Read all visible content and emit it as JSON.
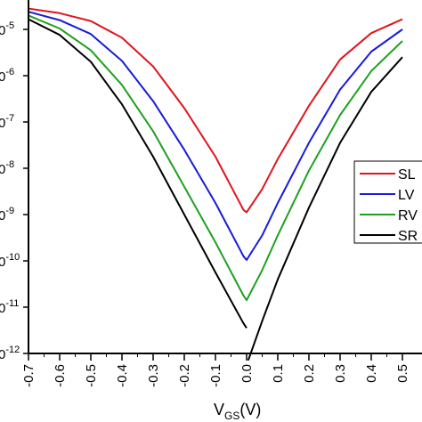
{
  "chart_data": {
    "type": "line",
    "xlabel": "V",
    "xlabel_subscript": "GS",
    "xlabel_unit": "(V)",
    "x_ticks": [
      "-0.7",
      "-0.6",
      "-0.5",
      "-0.4",
      "-0.3",
      "-0.2",
      "-0.1",
      "0.0",
      "0.1",
      "0.2",
      "0.3",
      "0.4",
      "0.5"
    ],
    "y_ticks": [
      {
        "exp": -5,
        "label": "-5"
      },
      {
        "exp": -6,
        "label": "-6"
      },
      {
        "exp": -7,
        "label": "-7"
      },
      {
        "exp": -8,
        "label": "-8"
      },
      {
        "exp": -9,
        "label": "-9"
      },
      {
        "exp": -10,
        "label": "-10"
      },
      {
        "exp": -11,
        "label": "-11"
      },
      {
        "exp": -12,
        "label": "-12"
      }
    ],
    "x_range": [
      -0.7,
      0.5
    ],
    "y_log_range": [
      -12.5,
      -4.5
    ],
    "y_scale": "log",
    "grid": false,
    "legend_position": "right",
    "series": [
      {
        "name": "SL",
        "color": "#e0151c",
        "points": [
          [
            -0.7,
            -4.55
          ],
          [
            -0.6,
            -4.65
          ],
          [
            -0.5,
            -4.82
          ],
          [
            -0.4,
            -5.18
          ],
          [
            -0.3,
            -5.8
          ],
          [
            -0.2,
            -6.7
          ],
          [
            -0.1,
            -7.75
          ],
          [
            -0.01,
            -8.9
          ],
          [
            0.0,
            -8.95
          ],
          [
            0.05,
            -8.45
          ],
          [
            0.1,
            -7.8
          ],
          [
            0.2,
            -6.65
          ],
          [
            0.3,
            -5.65
          ],
          [
            0.4,
            -5.08
          ],
          [
            0.5,
            -4.78
          ]
        ]
      },
      {
        "name": "LV",
        "color": "#1a1adb",
        "points": [
          [
            -0.7,
            -4.62
          ],
          [
            -0.6,
            -4.8
          ],
          [
            -0.5,
            -5.1
          ],
          [
            -0.4,
            -5.68
          ],
          [
            -0.3,
            -6.55
          ],
          [
            -0.2,
            -7.6
          ],
          [
            -0.1,
            -8.75
          ],
          [
            -0.01,
            -9.9
          ],
          [
            0.0,
            -9.98
          ],
          [
            0.05,
            -9.45
          ],
          [
            0.1,
            -8.75
          ],
          [
            0.2,
            -7.45
          ],
          [
            0.3,
            -6.3
          ],
          [
            0.4,
            -5.48
          ],
          [
            0.5,
            -5.0
          ]
        ]
      },
      {
        "name": "RV",
        "color": "#1ea01e",
        "points": [
          [
            -0.7,
            -4.7
          ],
          [
            -0.6,
            -4.98
          ],
          [
            -0.5,
            -5.45
          ],
          [
            -0.4,
            -6.2
          ],
          [
            -0.3,
            -7.2
          ],
          [
            -0.2,
            -8.4
          ],
          [
            -0.1,
            -9.6
          ],
          [
            -0.01,
            -10.75
          ],
          [
            0.0,
            -10.85
          ],
          [
            0.05,
            -10.2
          ],
          [
            0.1,
            -9.45
          ],
          [
            0.2,
            -8.05
          ],
          [
            0.3,
            -6.85
          ],
          [
            0.4,
            -5.9
          ],
          [
            0.5,
            -5.25
          ]
        ]
      },
      {
        "name": "SR",
        "color": "#000000",
        "segments": [
          [
            [
              -0.7,
              -4.78
            ],
            [
              -0.6,
              -5.12
            ],
            [
              -0.5,
              -5.7
            ],
            [
              -0.4,
              -6.62
            ],
            [
              -0.3,
              -7.75
            ],
            [
              -0.2,
              -9.0
            ],
            [
              -0.1,
              -10.25
            ],
            [
              -0.01,
              -11.35
            ],
            [
              0.0,
              -11.45
            ]
          ],
          [
            [
              0.005,
              -12.15
            ],
            [
              0.05,
              -11.3
            ],
            [
              0.1,
              -10.4
            ],
            [
              0.2,
              -8.85
            ],
            [
              0.3,
              -7.45
            ],
            [
              0.4,
              -6.35
            ],
            [
              0.5,
              -5.6
            ]
          ]
        ]
      }
    ]
  }
}
